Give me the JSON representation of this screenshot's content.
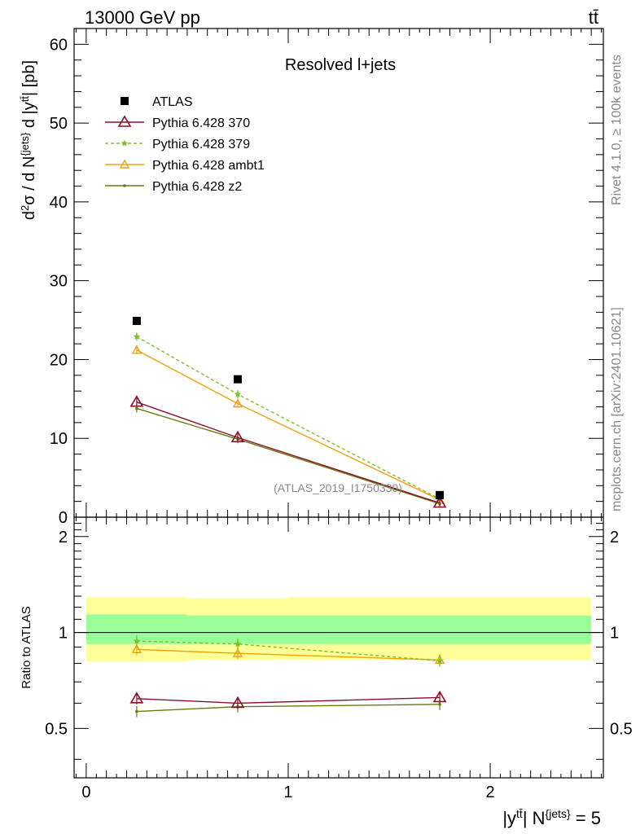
{
  "header": {
    "energy_label": "13000 GeV pp",
    "process_label": "tt̄",
    "panel_title": "Resolved l+jets",
    "watermark": "(ATLAS_2019_I1750330)"
  },
  "side": {
    "rivet": "Rivet 4.1.0, ≥ 100k events",
    "mcplots": "mcplots.cern.ch [arXiv:2401.10621]"
  },
  "axes": {
    "ylabel_main": "d²σ / d N^{jets} d |y^{tt̄}| [pb]",
    "ylabel_ratio": "Ratio to ATLAS",
    "xlabel": "|y^{tt̄}| N^{jets} = 5",
    "main_ylim": [
      0,
      62
    ],
    "ratio_ylim": [
      0.35,
      2.3
    ],
    "xlim": [
      -0.06,
      2.56
    ],
    "main_yticks": [
      "0",
      "10",
      "20",
      "30",
      "40",
      "50",
      "60"
    ],
    "ratio_yticks": [
      "0.5",
      "1",
      "2"
    ],
    "xticks": [
      "0",
      "1",
      "2"
    ]
  },
  "legend": [
    {
      "key": "atlas",
      "label": "ATLAS"
    },
    {
      "key": "p370",
      "label": "Pythia 6.428 370"
    },
    {
      "key": "p379",
      "label": "Pythia 6.428 379"
    },
    {
      "key": "ambt1",
      "label": "Pythia 6.428 ambt1"
    },
    {
      "key": "z2",
      "label": "Pythia 6.428 z2"
    }
  ],
  "colors": {
    "atlas": "#000000",
    "p370": "#8b0f2b",
    "p379": "#7cc02a",
    "ambt1": "#f2a10d",
    "z2": "#6b7a0e",
    "band_inner": "#99ff99",
    "band_outer": "#ffff99"
  },
  "chart_data": {
    "type": "line",
    "bins": [
      [
        0,
        0.5
      ],
      [
        0.5,
        1.0
      ],
      [
        1.0,
        2.5
      ]
    ],
    "x": [
      0.25,
      0.75,
      1.75
    ],
    "series": [
      {
        "key": "atlas",
        "name": "ATLAS",
        "values": [
          24.9,
          17.5,
          2.8
        ],
        "ratio": [
          1,
          1,
          1
        ]
      },
      {
        "key": "p370",
        "name": "Pythia 6.428 370",
        "values": [
          14.6,
          10.1,
          1.8
        ],
        "ratio": [
          0.62,
          0.6,
          0.625
        ]
      },
      {
        "key": "p379",
        "name": "Pythia 6.428 379",
        "values": [
          22.9,
          15.6,
          2.3
        ],
        "ratio": [
          0.94,
          0.92,
          0.815
        ]
      },
      {
        "key": "ambt1",
        "name": "Pythia 6.428 ambt1",
        "values": [
          21.2,
          14.4,
          2.2
        ],
        "ratio": [
          0.885,
          0.86,
          0.82
        ]
      },
      {
        "key": "z2",
        "name": "Pythia 6.428 z2",
        "values": [
          13.8,
          9.9,
          1.7
        ],
        "ratio": [
          0.565,
          0.585,
          0.595
        ]
      }
    ],
    "ratio_band_inner": [
      [
        0.92,
        1.14
      ],
      [
        0.92,
        1.13
      ],
      [
        0.92,
        1.13
      ]
    ],
    "ratio_band_outer": [
      [
        0.81,
        1.29
      ],
      [
        0.82,
        1.28
      ],
      [
        0.82,
        1.29
      ]
    ]
  }
}
